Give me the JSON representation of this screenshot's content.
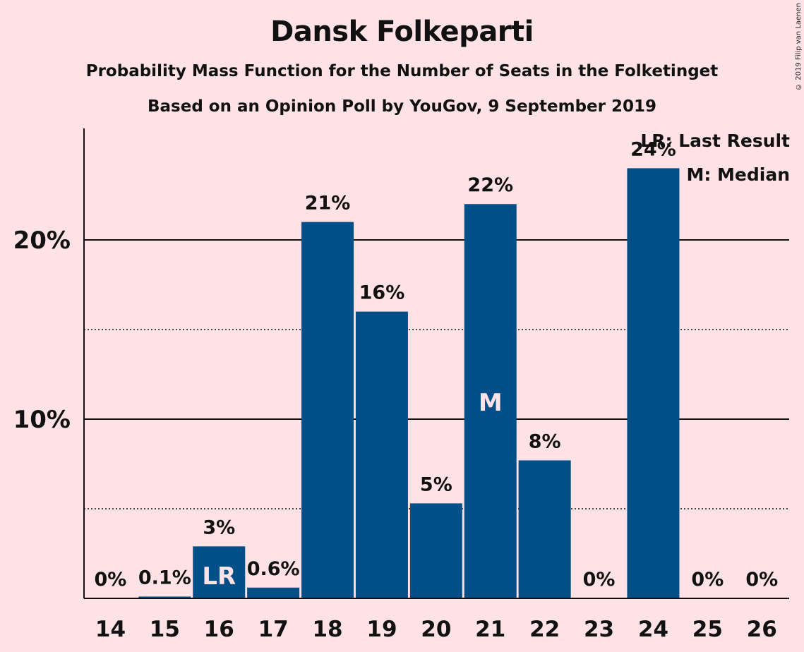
{
  "header": {
    "title": "Dansk Folkeparti",
    "subtitle1": "Probability Mass Function for the Number of Seats in the Folketinget",
    "subtitle2": "Based on an Opinion Poll by YouGov, 9 September 2019",
    "copyright": "© 2019 Filip van Laenen"
  },
  "legend": {
    "lr": "LR: Last Result",
    "m": "M: Median"
  },
  "colors": {
    "background": "#FFE2E6",
    "bar": "#004F88",
    "inner_label": "#FFE2E6"
  },
  "chart_data": {
    "type": "bar",
    "categories": [
      "14",
      "15",
      "16",
      "17",
      "18",
      "19",
      "20",
      "21",
      "22",
      "23",
      "24",
      "25",
      "26"
    ],
    "values": [
      0,
      0.1,
      2.9,
      0.6,
      21.0,
      16.0,
      5.3,
      22.0,
      7.7,
      0,
      24.0,
      0,
      0
    ],
    "value_labels": [
      "0%",
      "0.1%",
      "3%",
      "0.6%",
      "21%",
      "16%",
      "5%",
      "22%",
      "8%",
      "0%",
      "24%",
      "0%",
      "0%"
    ],
    "inner_labels": {
      "16": "LR",
      "21": "M"
    },
    "ylim": [
      0,
      26
    ],
    "yticks_major": [
      10,
      20
    ],
    "ytick_labels": [
      "10%",
      "20%"
    ],
    "yticks_minor": [
      5,
      15
    ],
    "xlabel": "",
    "ylabel": ""
  }
}
